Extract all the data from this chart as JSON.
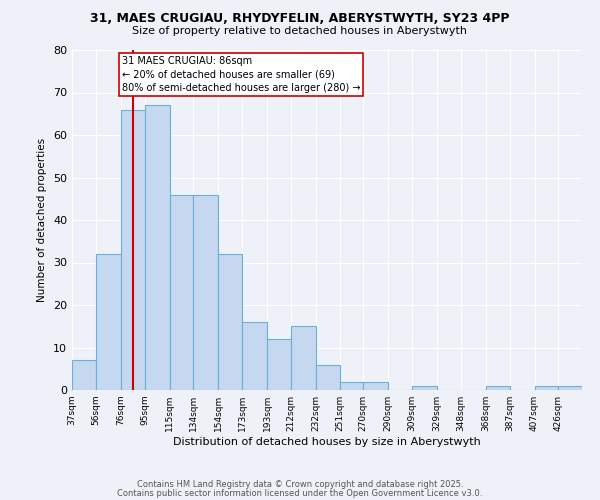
{
  "title1": "31, MAES CRUGIAU, RHYDYFELIN, ABERYSTWYTH, SY23 4PP",
  "title2": "Size of property relative to detached houses in Aberystwyth",
  "xlabel": "Distribution of detached houses by size in Aberystwyth",
  "ylabel": "Number of detached properties",
  "bin_labels": [
    "37sqm",
    "56sqm",
    "76sqm",
    "95sqm",
    "115sqm",
    "134sqm",
    "154sqm",
    "173sqm",
    "193sqm",
    "212sqm",
    "232sqm",
    "251sqm",
    "270sqm",
    "290sqm",
    "309sqm",
    "329sqm",
    "348sqm",
    "368sqm",
    "387sqm",
    "407sqm",
    "426sqm"
  ],
  "bin_edges": [
    37,
    56,
    76,
    95,
    115,
    134,
    154,
    173,
    193,
    212,
    232,
    251,
    270,
    290,
    309,
    329,
    348,
    368,
    387,
    407,
    426
  ],
  "counts": [
    7,
    32,
    66,
    67,
    46,
    46,
    32,
    16,
    12,
    15,
    6,
    2,
    2,
    0,
    1,
    0,
    0,
    1,
    0,
    1,
    1
  ],
  "bar_color": "#c5d8f0",
  "bar_edge_color": "#6baed6",
  "property_size": 86,
  "red_line_color": "#cc0000",
  "annotation_text": "31 MAES CRUGIAU: 86sqm\n← 20% of detached houses are smaller (69)\n80% of semi-detached houses are larger (280) →",
  "annotation_box_color": "#ffffff",
  "annotation_box_edge": "#cc0000",
  "ylim": [
    0,
    80
  ],
  "yticks": [
    0,
    10,
    20,
    30,
    40,
    50,
    60,
    70,
    80
  ],
  "footer1": "Contains HM Land Registry data © Crown copyright and database right 2025.",
  "footer2": "Contains public sector information licensed under the Open Government Licence v3.0.",
  "background_color": "#eef2f8"
}
